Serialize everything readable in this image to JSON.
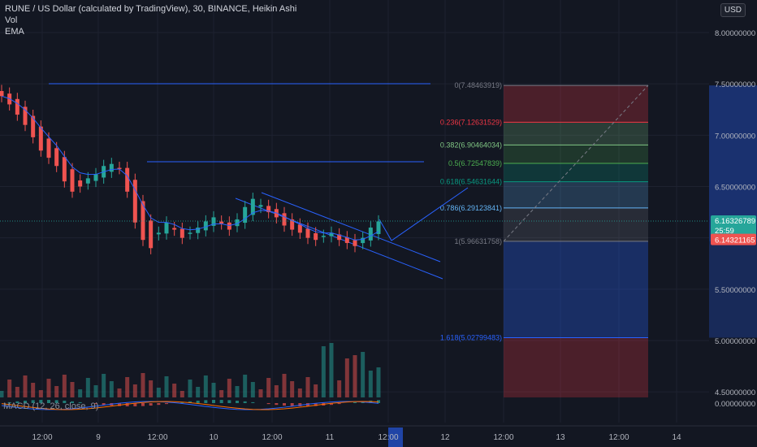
{
  "header": {
    "title": "RUNE / US Dollar (calculated by TradingView), 30, BINANCE, Heikin Ashi",
    "indicators": [
      "Vol",
      "EMA"
    ],
    "currency": "USD"
  },
  "macd_label": "MACD (12, 26, close, 9)",
  "price_axis": {
    "ticks": [
      "8.00000000",
      "7.50000000",
      "7.00000000",
      "6.50000000",
      "5.50000000",
      "5.00000000",
      "4.50000000",
      "0.00000000"
    ],
    "last_price": "6.16326789",
    "countdown": "25:59",
    "ema_value": "6.14321165"
  },
  "time_axis": {
    "ticks": [
      "12:00",
      "9",
      "12:00",
      "10",
      "12:00",
      "11",
      "12:00",
      "12",
      "12:00",
      "13",
      "12:00",
      "14"
    ]
  },
  "fib_levels": [
    {
      "label": "0(7.48463919)",
      "color": "#787b86"
    },
    {
      "label": "0.236(7.12631529)",
      "color": "#f23645"
    },
    {
      "label": "0.382(6.90464034)",
      "color": "#81c784"
    },
    {
      "label": "0.5(6.72547839)",
      "color": "#4caf50"
    },
    {
      "label": "0.618(6.54631644)",
      "color": "#089981"
    },
    {
      "label": "0.786(6.29123841)",
      "color": "#64b5f6"
    },
    {
      "label": "1(5.96631758)",
      "color": "#787b86"
    },
    {
      "label": "1.618(5.02799483)",
      "color": "#2962ff"
    }
  ],
  "colors": {
    "background": "#131722",
    "up": "#26a69a",
    "down": "#ef5350",
    "drawing": "#2962ff",
    "ema": "#2962ff"
  },
  "chart_data": {
    "type": "candlestick",
    "symbol": "RUNE/USD",
    "interval": "30",
    "x_ticks": [
      "12:00",
      "9",
      "12:00",
      "10",
      "12:00",
      "11",
      "12:00",
      "12",
      "12:00",
      "13",
      "12:00",
      "14"
    ],
    "ylim": [
      4.45,
      8.2
    ],
    "candles_close": [
      7.38,
      7.3,
      7.2,
      7.1,
      6.98,
      6.85,
      6.78,
      6.7,
      6.55,
      6.45,
      6.5,
      6.58,
      6.62,
      6.7,
      6.72,
      6.68,
      6.45,
      6.15,
      5.98,
      5.9,
      6.05,
      6.15,
      6.08,
      6.0,
      6.05,
      6.1,
      6.16,
      6.2,
      6.14,
      6.08,
      6.18,
      6.3,
      6.38,
      6.32,
      6.25,
      6.2,
      6.12,
      6.08,
      6.05,
      6.0,
      5.98,
      6.02,
      6.05,
      5.98,
      5.95,
      5.92,
      6.0,
      6.1,
      6.16
    ],
    "fib_retracement": [
      {
        "level": 0,
        "price": 7.48463919
      },
      {
        "level": 0.236,
        "price": 7.12631529
      },
      {
        "level": 0.382,
        "price": 6.90464034
      },
      {
        "level": 0.5,
        "price": 6.72547839
      },
      {
        "level": 0.618,
        "price": 6.54631644
      },
      {
        "level": 0.786,
        "price": 6.29123841
      },
      {
        "level": 1,
        "price": 5.96631758
      },
      {
        "level": 1.618,
        "price": 5.02799483
      }
    ],
    "last_price": 6.16326789,
    "ema": 6.14321165
  }
}
